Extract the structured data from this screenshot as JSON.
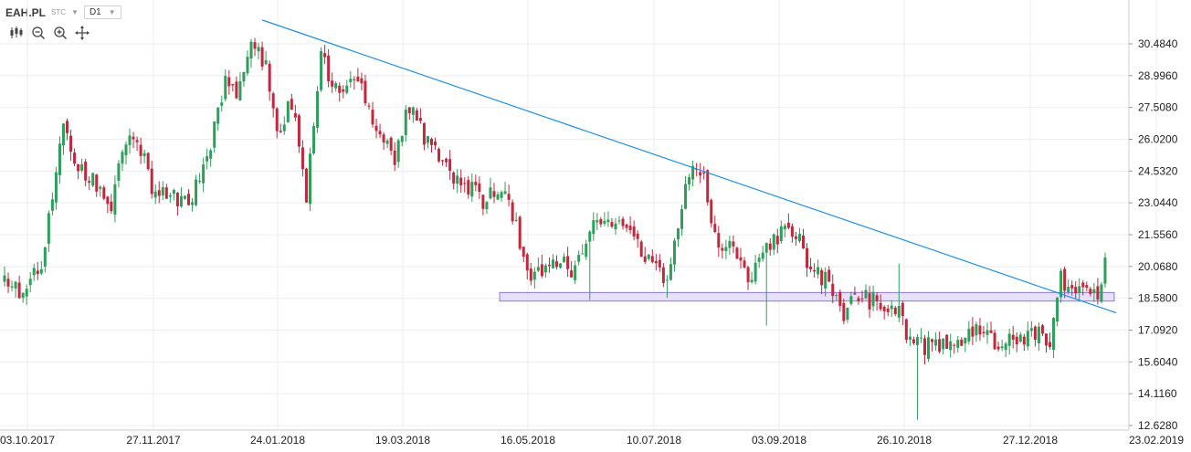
{
  "header": {
    "symbol": "EAH.PL",
    "market": "STC",
    "timeframe": "D1"
  },
  "toolbar": {
    "icons": [
      "candlestick-type-icon",
      "zoom-out-icon",
      "zoom-in-icon",
      "crosshair-icon"
    ]
  },
  "colors": {
    "up": "#2e9e5b",
    "down": "#c0283e",
    "trendline": "#1e90e6",
    "band_fill": "#e3dcff",
    "band_stroke": "#8a76d8",
    "grid": "#eeeeee"
  },
  "chart_data": {
    "type": "candlestick",
    "x_ticks": [
      "03.10.2017",
      "27.11.2017",
      "24.01.2018",
      "19.03.2018",
      "16.05.2018",
      "10.07.2018",
      "03.09.2018",
      "26.10.2018",
      "27.12.2018",
      "23.02.2019"
    ],
    "y_ticks": [
      30.484,
      28.996,
      27.508,
      26.02,
      24.532,
      23.044,
      21.556,
      20.068,
      18.58,
      17.092,
      15.604,
      14.116,
      12.628
    ],
    "y_labels": [
      "30.4840",
      "28.9960",
      "27.5080",
      "26.0200",
      "24.5320",
      "23.0440",
      "21.5560",
      "20.0680",
      "18.5800",
      "17.0920",
      "15.6040",
      "14.1160",
      "12.6280"
    ],
    "ylim": [
      12.5,
      32.0
    ],
    "grid": true,
    "trendline": {
      "start": {
        "bar": 70,
        "price": 31.6
      },
      "end": {
        "bar": 299,
        "price": 17.9
      }
    },
    "support_band": {
      "from_bar": 135,
      "to_bar": 299,
      "low": 18.45,
      "high": 18.85
    },
    "anchors": [
      [
        0,
        19.6
      ],
      [
        5,
        18.6
      ],
      [
        10,
        20.2
      ],
      [
        14,
        24.8
      ],
      [
        16,
        26.5
      ],
      [
        19,
        25.0
      ],
      [
        25,
        24.0
      ],
      [
        29,
        22.8
      ],
      [
        32,
        25.8
      ],
      [
        36,
        26.2
      ],
      [
        40,
        23.8
      ],
      [
        46,
        23.2
      ],
      [
        50,
        23.0
      ],
      [
        55,
        25.0
      ],
      [
        60,
        28.6
      ],
      [
        63,
        28.0
      ],
      [
        67,
        30.5
      ],
      [
        71,
        29.5
      ],
      [
        74,
        26.2
      ],
      [
        78,
        27.8
      ],
      [
        82,
        23.5
      ],
      [
        86,
        29.8
      ],
      [
        90,
        28.4
      ],
      [
        96,
        28.7
      ],
      [
        100,
        26.8
      ],
      [
        106,
        25.2
      ],
      [
        110,
        27.6
      ],
      [
        116,
        25.5
      ],
      [
        122,
        24.3
      ],
      [
        130,
        23.2
      ],
      [
        135,
        23.8
      ],
      [
        138,
        22.6
      ],
      [
        143,
        19.2
      ],
      [
        146,
        20.0
      ],
      [
        150,
        20.2
      ],
      [
        155,
        19.9
      ],
      [
        160,
        22.1
      ],
      [
        165,
        21.9
      ],
      [
        170,
        21.6
      ],
      [
        175,
        20.3
      ],
      [
        180,
        19.6
      ],
      [
        183,
        21.6
      ],
      [
        186,
        24.6
      ],
      [
        190,
        24.4
      ],
      [
        193,
        21.4
      ],
      [
        198,
        21.0
      ],
      [
        202,
        19.4
      ],
      [
        205,
        20.3
      ],
      [
        210,
        21.5
      ],
      [
        215,
        21.7
      ],
      [
        218,
        20.4
      ],
      [
        224,
        19.2
      ],
      [
        228,
        17.9
      ],
      [
        232,
        18.6
      ],
      [
        238,
        18.4
      ],
      [
        243,
        17.8
      ],
      [
        246,
        16.5
      ],
      [
        250,
        16.3
      ],
      [
        254,
        16.4
      ],
      [
        258,
        16.7
      ],
      [
        262,
        16.9
      ],
      [
        266,
        17.0
      ],
      [
        270,
        16.5
      ],
      [
        275,
        16.5
      ],
      [
        281,
        16.9
      ],
      [
        284,
        16.6
      ],
      [
        287,
        19.6
      ],
      [
        290,
        18.6
      ],
      [
        294,
        19.0
      ],
      [
        297,
        18.5
      ],
      [
        299,
        20.6
      ]
    ],
    "n_bars": 300
  }
}
